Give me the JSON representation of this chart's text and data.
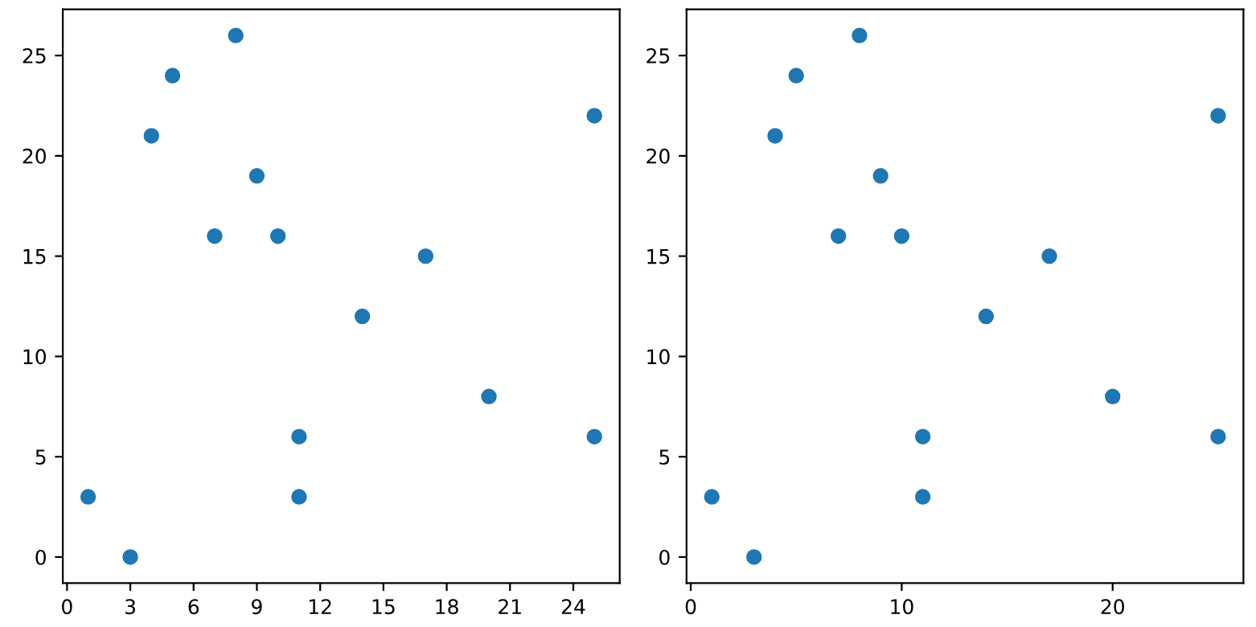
{
  "chart_data": [
    {
      "type": "scatter",
      "x": [
        1,
        3,
        4,
        5,
        7,
        8,
        9,
        10,
        11,
        11,
        14,
        17,
        20,
        25,
        25
      ],
      "series": [
        {
          "color": "#1f77b4",
          "values": [
            3,
            0,
            21,
            24,
            16,
            26,
            19,
            16,
            6,
            3,
            12,
            15,
            8,
            22,
            6
          ]
        }
      ],
      "xlim": [
        -0.2,
        26.2
      ],
      "xticks": [
        0,
        3,
        6,
        9,
        12,
        15,
        18,
        21,
        24
      ],
      "ylim": [
        -1.3,
        27.3
      ],
      "yticks": [
        0,
        5,
        10,
        15,
        20,
        25
      ],
      "marker": "circle"
    },
    {
      "type": "scatter",
      "x": [
        1,
        3,
        4,
        5,
        7,
        8,
        9,
        10,
        11,
        11,
        14,
        17,
        20,
        25,
        25
      ],
      "series": [
        {
          "color": "#1f77b4",
          "values": [
            3,
            0,
            21,
            24,
            16,
            26,
            19,
            16,
            6,
            3,
            12,
            15,
            8,
            22,
            6
          ]
        }
      ],
      "xlim": [
        -0.2,
        26.2
      ],
      "xticks": [
        0,
        10,
        20
      ],
      "ylim": [
        -1.3,
        27.3
      ],
      "yticks": [
        0,
        5,
        10,
        15,
        20,
        25
      ],
      "marker": "circle"
    }
  ]
}
